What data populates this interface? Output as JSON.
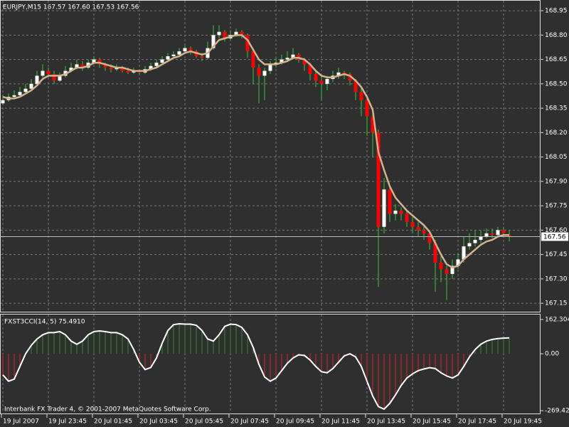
{
  "chart_data": [
    {
      "type": "candlestick",
      "title": "EURJPY,M15  167.57 167.60 167.53 167.56",
      "categories": [
        "19 Jul 2007",
        null,
        null,
        null,
        null,
        null,
        null,
        null,
        "19 Jul 23:45",
        null,
        null,
        null,
        null,
        null,
        null,
        null,
        "20 Jul 01:45",
        null,
        null,
        null,
        null,
        null,
        null,
        null,
        "20 Jul 03:45",
        null,
        null,
        null,
        null,
        null,
        null,
        null,
        "20 Jul 05:45",
        null,
        null,
        null,
        null,
        null,
        null,
        null,
        "20 Jul 07:45",
        null,
        null,
        null,
        null,
        null,
        null,
        null,
        "20 Jul 09:45",
        null,
        null,
        null,
        null,
        null,
        null,
        null,
        "20 Jul 11:45",
        null,
        null,
        null,
        null,
        null,
        null,
        null,
        "20 Jul 13:45",
        null,
        null,
        null,
        null,
        null,
        null,
        null,
        "20 Jul 15:45",
        null,
        null,
        null,
        null,
        null,
        null,
        null,
        "20 Jul 17:45",
        null,
        null,
        null,
        null,
        null,
        null,
        null,
        "20 Jul 19:45",
        null
      ],
      "open": [
        168.38,
        168.4,
        168.42,
        168.43,
        168.45,
        168.47,
        168.5,
        168.55,
        168.58,
        168.56,
        168.52,
        168.55,
        168.58,
        168.6,
        168.62,
        168.6,
        168.63,
        168.65,
        168.62,
        168.6,
        168.59,
        168.6,
        168.58,
        168.57,
        168.58,
        168.57,
        168.59,
        168.61,
        168.63,
        168.65,
        168.67,
        168.68,
        168.7,
        168.72,
        168.7,
        168.67,
        168.66,
        168.72,
        168.8,
        168.82,
        168.78,
        168.8,
        168.82,
        168.8,
        168.7,
        168.6,
        168.55,
        168.58,
        168.62,
        168.63,
        168.65,
        168.66,
        168.68,
        168.65,
        168.62,
        168.56,
        168.52,
        168.5,
        168.53,
        168.55,
        168.57,
        168.56,
        168.52,
        168.45,
        168.4,
        168.3,
        168.2,
        167.62,
        167.85,
        167.7,
        167.72,
        167.7,
        167.65,
        167.62,
        167.6,
        167.58,
        167.52,
        167.4,
        167.36,
        167.33,
        167.38,
        167.42,
        167.5,
        167.52,
        167.54,
        167.56,
        167.58,
        167.57,
        167.6,
        167.57
      ],
      "high": [
        168.43,
        168.44,
        168.46,
        168.48,
        168.5,
        168.53,
        168.58,
        168.62,
        168.6,
        168.58,
        168.57,
        168.61,
        168.63,
        168.65,
        168.64,
        168.65,
        168.67,
        168.66,
        168.63,
        168.62,
        168.62,
        168.61,
        168.6,
        168.6,
        168.59,
        168.61,
        168.63,
        168.65,
        168.67,
        168.69,
        168.7,
        168.72,
        168.74,
        168.73,
        168.71,
        168.69,
        168.76,
        168.86,
        168.86,
        168.83,
        168.83,
        168.84,
        168.83,
        168.81,
        168.72,
        168.62,
        168.6,
        168.64,
        168.66,
        168.68,
        168.7,
        168.72,
        168.69,
        168.66,
        168.63,
        168.58,
        168.55,
        168.55,
        168.58,
        168.6,
        168.58,
        168.57,
        168.53,
        168.47,
        168.42,
        168.32,
        168.22,
        167.92,
        167.88,
        167.76,
        167.74,
        167.72,
        167.68,
        167.65,
        167.63,
        167.6,
        167.54,
        167.44,
        167.38,
        167.42,
        167.46,
        167.56,
        167.58,
        167.6,
        167.6,
        167.61,
        167.61,
        167.62,
        167.62,
        167.6
      ],
      "low": [
        168.37,
        168.39,
        168.41,
        168.42,
        168.44,
        168.46,
        168.49,
        168.54,
        168.54,
        168.5,
        168.51,
        168.54,
        168.57,
        168.59,
        168.58,
        168.59,
        168.62,
        168.6,
        168.58,
        168.57,
        168.58,
        168.57,
        168.56,
        168.56,
        168.56,
        168.56,
        168.58,
        168.6,
        168.62,
        168.64,
        168.66,
        168.67,
        168.69,
        168.68,
        168.66,
        168.64,
        168.65,
        168.71,
        168.78,
        168.76,
        168.77,
        168.79,
        168.78,
        168.66,
        168.5,
        168.38,
        168.4,
        168.56,
        168.6,
        168.62,
        168.64,
        168.65,
        168.63,
        168.58,
        168.52,
        168.48,
        168.4,
        168.46,
        168.51,
        168.53,
        168.53,
        168.49,
        168.4,
        168.3,
        168.18,
        168.05,
        167.25,
        167.58,
        167.65,
        167.66,
        167.66,
        167.62,
        167.58,
        167.56,
        167.54,
        167.48,
        167.22,
        167.28,
        167.17,
        167.3,
        167.36,
        167.4,
        167.48,
        167.5,
        167.52,
        167.55,
        167.55,
        167.56,
        167.56,
        167.53
      ],
      "close": [
        168.4,
        168.42,
        168.43,
        168.45,
        168.47,
        168.5,
        168.55,
        168.58,
        168.56,
        168.52,
        168.55,
        168.58,
        168.6,
        168.62,
        168.6,
        168.63,
        168.65,
        168.62,
        168.6,
        168.59,
        168.6,
        168.58,
        168.57,
        168.58,
        168.57,
        168.59,
        168.61,
        168.63,
        168.65,
        168.67,
        168.68,
        168.7,
        168.72,
        168.7,
        168.67,
        168.66,
        168.72,
        168.8,
        168.82,
        168.78,
        168.8,
        168.82,
        168.8,
        168.7,
        168.6,
        168.55,
        168.58,
        168.62,
        168.63,
        168.65,
        168.66,
        168.68,
        168.65,
        168.62,
        168.56,
        168.52,
        168.5,
        168.53,
        168.55,
        168.57,
        168.56,
        168.52,
        168.45,
        168.4,
        168.3,
        168.2,
        167.62,
        167.85,
        167.7,
        167.72,
        167.7,
        167.65,
        167.62,
        167.6,
        167.58,
        167.52,
        167.4,
        167.36,
        167.33,
        167.38,
        167.42,
        167.5,
        167.52,
        167.54,
        167.56,
        167.58,
        167.57,
        167.6,
        167.58,
        167.56
      ],
      "ma": {
        "color": "#d2b48c",
        "values": [
          168.42,
          168.41,
          168.41,
          168.42,
          168.44,
          168.46,
          168.49,
          168.53,
          168.55,
          168.55,
          168.55,
          168.56,
          168.58,
          168.6,
          168.6,
          168.61,
          168.63,
          168.63,
          168.62,
          168.61,
          168.6,
          168.6,
          168.59,
          168.58,
          168.58,
          168.58,
          168.59,
          168.6,
          168.62,
          168.64,
          168.66,
          168.67,
          168.69,
          168.7,
          168.69,
          168.68,
          168.69,
          168.73,
          168.77,
          168.78,
          168.79,
          168.8,
          168.8,
          168.77,
          168.71,
          168.65,
          168.62,
          168.62,
          168.62,
          168.63,
          168.64,
          168.66,
          168.66,
          168.65,
          168.62,
          168.58,
          168.55,
          168.54,
          168.54,
          168.55,
          168.56,
          168.55,
          168.52,
          168.48,
          168.42,
          168.34,
          168.08,
          167.97,
          167.87,
          167.8,
          167.76,
          167.72,
          167.69,
          167.66,
          167.63,
          167.59,
          167.52,
          167.45,
          167.39,
          167.37,
          167.38,
          167.42,
          167.45,
          167.48,
          167.51,
          167.53,
          167.54,
          167.56,
          167.57,
          167.57
        ]
      },
      "current_price": 167.56,
      "up_color": "#ffffff",
      "down_color": "#ff0000",
      "wick_color": "#32cd32",
      "ylim": [
        167.098,
        169.016
      ],
      "yticks": [
        168.95,
        {
          "value": 168.8,
          "label": "168.80"
        },
        168.65,
        {
          "value": 168.5,
          "label": "168.50"
        },
        168.35,
        {
          "value": 168.2,
          "label": "168.20"
        },
        168.05,
        {
          "value": 167.9,
          "label": "167.90"
        },
        167.75,
        {
          "value": 167.6,
          "label": "167.60"
        },
        167.45,
        {
          "value": 167.3,
          "label": "167.30"
        },
        167.15
      ],
      "grid": true
    },
    {
      "type": "histogram-line",
      "title": "FXST3CCI(14, 5) 75.4910",
      "values": [
        -100,
        -130,
        -120,
        -60,
        0,
        40,
        70,
        90,
        100,
        100,
        105,
        90,
        60,
        45,
        60,
        90,
        105,
        108,
        105,
        100,
        100,
        90,
        70,
        20,
        -40,
        -75,
        -65,
        -20,
        50,
        110,
        138,
        142,
        140,
        140,
        135,
        110,
        70,
        60,
        90,
        130,
        140,
        138,
        125,
        90,
        30,
        -50,
        -110,
        -130,
        -115,
        -80,
        -45,
        -20,
        -5,
        -8,
        -30,
        -60,
        -85,
        -90,
        -70,
        -40,
        -10,
        0,
        -15,
        -60,
        -130,
        -200,
        -250,
        -262,
        -235,
        -195,
        -150,
        -115,
        -95,
        -80,
        -72,
        -66,
        -70,
        -90,
        -105,
        -115,
        -100,
        -60,
        -15,
        20,
        45,
        60,
        68,
        72,
        74,
        75.491
      ],
      "pos_color": "#2e8b2e",
      "neg_color": "#e02020",
      "line_color": "#ffffff",
      "ylim": [
        -286,
        189
      ],
      "yticks": [
        162.3045,
        {
          "value": 0,
          "label": "0.00"
        },
        -269.4251
      ],
      "grid": true
    }
  ],
  "footer": "Interbank FX Trader 4, © 2001-2007 MetaQuotes Software Corp."
}
